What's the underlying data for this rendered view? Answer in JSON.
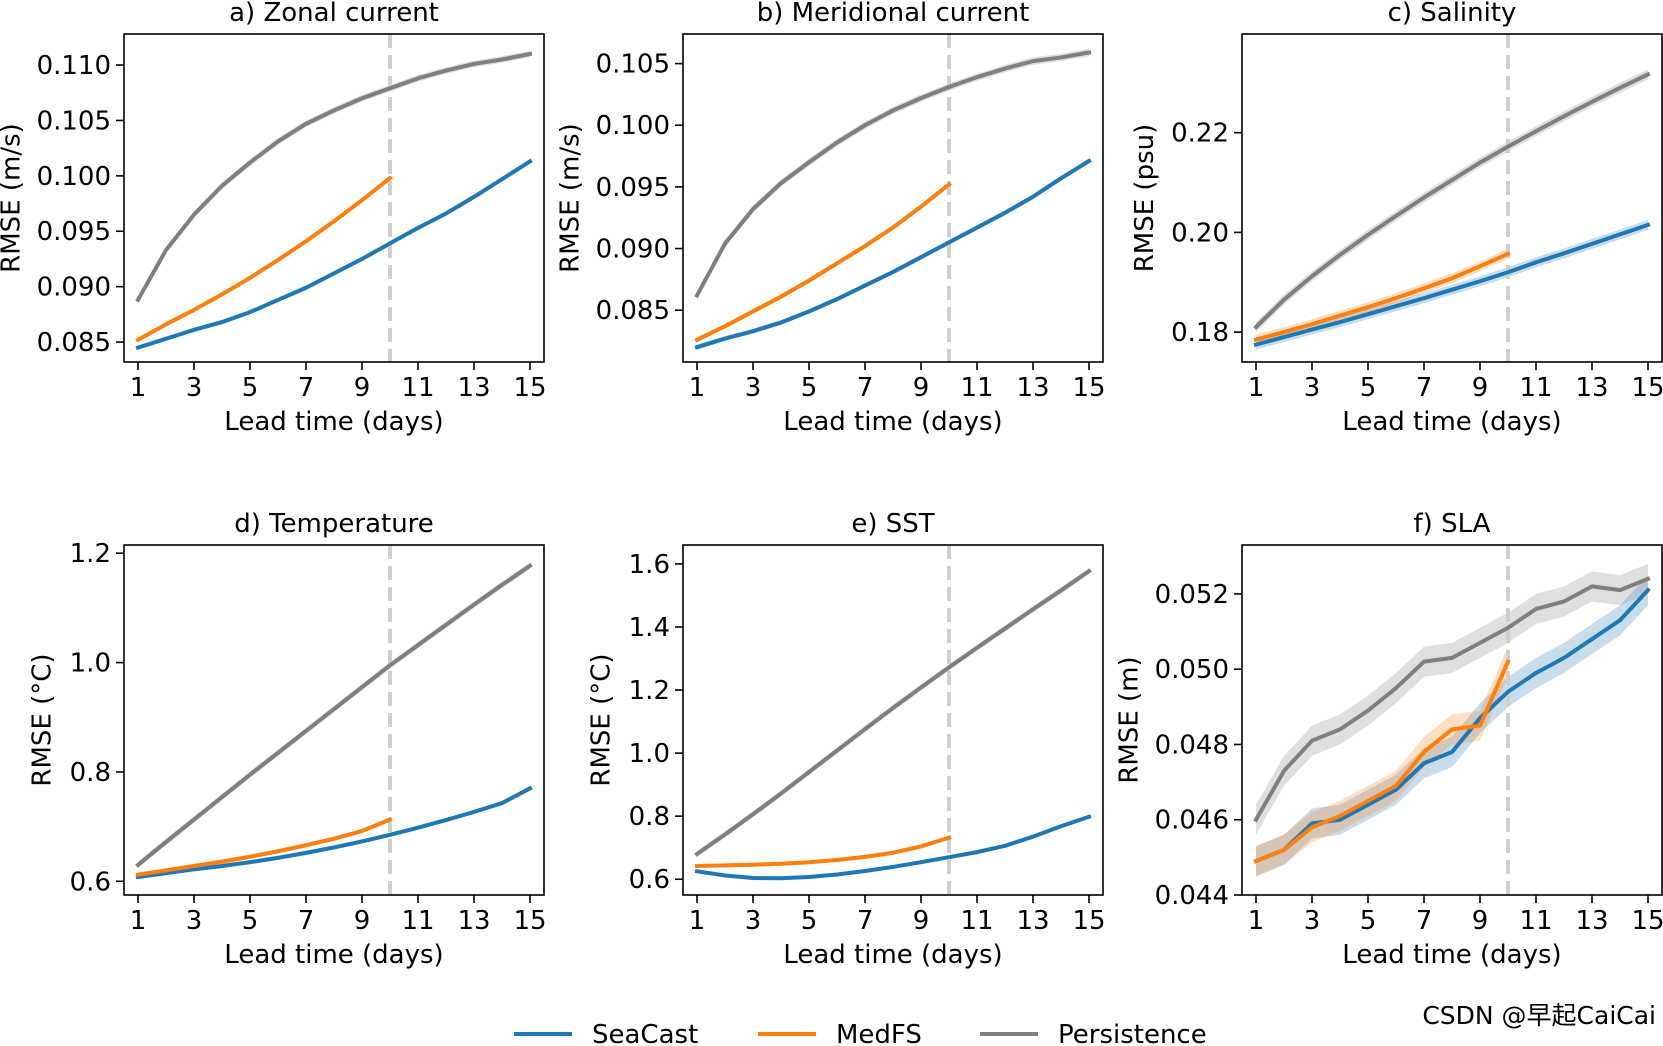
{
  "legend": [
    {
      "name": "SeaCast",
      "color": "#1f77b4"
    },
    {
      "name": "MedFS",
      "color": "#ff7f0e"
    },
    {
      "name": "Persistence",
      "color": "#7f7f7f"
    }
  ],
  "watermark": "CSDN @早起CaiCai",
  "chart_data": [
    {
      "type": "line",
      "title": "a) Zonal current",
      "xlabel": "Lead time (days)",
      "ylabel": "RMSE (m/s)",
      "xlim": [
        0.5,
        15.5
      ],
      "ylim": [
        0.0832,
        0.1128
      ],
      "xticks": [
        "1",
        "3",
        "5",
        "7",
        "9",
        "11",
        "13",
        "15"
      ],
      "yticks": [
        "0.085",
        "0.090",
        "0.095",
        "0.100",
        "0.105",
        "0.110"
      ],
      "marker_x": 10,
      "series": [
        {
          "name": "SeaCast",
          "x": [
            1,
            2,
            3,
            4,
            5,
            6,
            7,
            8,
            9,
            10,
            11,
            12,
            13,
            14,
            15
          ],
          "values": [
            0.0845,
            0.0853,
            0.0861,
            0.0868,
            0.0877,
            0.0888,
            0.0899,
            0.0912,
            0.0925,
            0.0939,
            0.0953,
            0.0966,
            0.0981,
            0.0997,
            0.1013
          ],
          "band": 0.0002
        },
        {
          "name": "MedFS",
          "x": [
            1,
            2,
            3,
            4,
            5,
            6,
            7,
            8,
            9,
            10
          ],
          "values": [
            0.0852,
            0.0866,
            0.0879,
            0.0893,
            0.0908,
            0.0924,
            0.0941,
            0.0959,
            0.0978,
            0.0998
          ],
          "band": 0.0002
        },
        {
          "name": "Persistence",
          "x": [
            1,
            2,
            3,
            4,
            5,
            6,
            7,
            8,
            9,
            10,
            11,
            12,
            13,
            14,
            15
          ],
          "values": [
            0.0888,
            0.0933,
            0.0965,
            0.0991,
            0.1012,
            0.1031,
            0.1047,
            0.1059,
            0.107,
            0.1079,
            0.1088,
            0.1095,
            0.1101,
            0.1105,
            0.111
          ],
          "band": 0.0003
        }
      ]
    },
    {
      "type": "line",
      "title": "b) Meridional current",
      "xlabel": "Lead time (days)",
      "ylabel": "RMSE (m/s)",
      "xlim": [
        0.5,
        15.5
      ],
      "ylim": [
        0.0808,
        0.1074
      ],
      "xticks": [
        "1",
        "3",
        "5",
        "7",
        "9",
        "11",
        "13",
        "15"
      ],
      "yticks": [
        "0.085",
        "0.090",
        "0.095",
        "0.100",
        "0.105"
      ],
      "marker_x": 10,
      "series": [
        {
          "name": "SeaCast",
          "x": [
            1,
            2,
            3,
            4,
            5,
            6,
            7,
            8,
            9,
            10,
            11,
            12,
            13,
            14,
            15
          ],
          "values": [
            0.082,
            0.0827,
            0.0833,
            0.084,
            0.0849,
            0.0859,
            0.087,
            0.0881,
            0.0893,
            0.0905,
            0.0917,
            0.0929,
            0.0942,
            0.0957,
            0.0971
          ],
          "band": 0.0002
        },
        {
          "name": "MedFS",
          "x": [
            1,
            2,
            3,
            4,
            5,
            6,
            7,
            8,
            9,
            10
          ],
          "values": [
            0.0826,
            0.0837,
            0.0849,
            0.0861,
            0.0874,
            0.0888,
            0.0902,
            0.0917,
            0.0934,
            0.0952
          ],
          "band": 0.0002
        },
        {
          "name": "Persistence",
          "x": [
            1,
            2,
            3,
            4,
            5,
            6,
            7,
            8,
            9,
            10,
            11,
            12,
            13,
            14,
            15
          ],
          "values": [
            0.0862,
            0.0904,
            0.0932,
            0.0953,
            0.097,
            0.0986,
            0.1,
            0.1012,
            0.1022,
            0.1031,
            0.1039,
            0.1046,
            0.1052,
            0.1055,
            0.1059
          ],
          "band": 0.0003
        }
      ]
    },
    {
      "type": "line",
      "title": "c) Salinity",
      "xlabel": "Lead time (days)",
      "ylabel": "RMSE (psu)",
      "xlim": [
        0.5,
        15.5
      ],
      "ylim": [
        0.174,
        0.2398
      ],
      "xticks": [
        "1",
        "3",
        "5",
        "7",
        "9",
        "11",
        "13",
        "15"
      ],
      "yticks": [
        "0.18",
        "0.20",
        "0.22"
      ],
      "marker_x": 10,
      "series": [
        {
          "name": "SeaCast",
          "x": [
            1,
            2,
            3,
            4,
            5,
            6,
            7,
            8,
            9,
            10,
            11,
            12,
            13,
            14,
            15
          ],
          "values": [
            0.1775,
            0.179,
            0.1805,
            0.182,
            0.1836,
            0.1852,
            0.1868,
            0.1885,
            0.1902,
            0.192,
            0.194,
            0.1958,
            0.1977,
            0.1996,
            0.2015
          ],
          "band": 0.001
        },
        {
          "name": "MedFS",
          "x": [
            1,
            2,
            3,
            4,
            5,
            6,
            7,
            8,
            9,
            10
          ],
          "values": [
            0.1785,
            0.18,
            0.1816,
            0.1833,
            0.185,
            0.1868,
            0.1888,
            0.1908,
            0.1932,
            0.1957
          ],
          "band": 0.001
        },
        {
          "name": "Persistence",
          "x": [
            1,
            2,
            3,
            4,
            5,
            6,
            7,
            8,
            9,
            10,
            11,
            12,
            13,
            14,
            15
          ],
          "values": [
            0.181,
            0.1865,
            0.1912,
            0.1955,
            0.1995,
            0.2033,
            0.207,
            0.2105,
            0.214,
            0.2172,
            0.2203,
            0.2233,
            0.2262,
            0.229,
            0.2317
          ],
          "band": 0.001
        }
      ]
    },
    {
      "type": "line",
      "title": "d) Temperature",
      "xlabel": "Lead time (days)",
      "ylabel": "RMSE (°C)",
      "xlim": [
        0.5,
        15.5
      ],
      "ylim": [
        0.575,
        1.215
      ],
      "xticks": [
        "1",
        "3",
        "5",
        "7",
        "9",
        "11",
        "13",
        "15"
      ],
      "yticks": [
        "0.6",
        "0.8",
        "1.0",
        "1.2"
      ],
      "marker_x": 10,
      "series": [
        {
          "name": "SeaCast",
          "x": [
            1,
            2,
            3,
            4,
            5,
            6,
            7,
            8,
            9,
            10,
            11,
            12,
            13,
            14,
            15
          ],
          "values": [
            0.608,
            0.615,
            0.622,
            0.628,
            0.635,
            0.643,
            0.652,
            0.662,
            0.673,
            0.685,
            0.698,
            0.712,
            0.727,
            0.743,
            0.77
          ],
          "band": 0.004
        },
        {
          "name": "MedFS",
          "x": [
            1,
            2,
            3,
            4,
            5,
            6,
            7,
            8,
            9,
            10
          ],
          "values": [
            0.612,
            0.62,
            0.628,
            0.636,
            0.645,
            0.655,
            0.666,
            0.678,
            0.692,
            0.713
          ],
          "band": 0.004
        },
        {
          "name": "Persistence",
          "x": [
            1,
            2,
            3,
            4,
            5,
            6,
            7,
            8,
            9,
            10,
            11,
            12,
            13,
            14,
            15
          ],
          "values": [
            0.63,
            0.672,
            0.713,
            0.754,
            0.795,
            0.835,
            0.875,
            0.915,
            0.955,
            0.995,
            1.032,
            1.069,
            1.106,
            1.142,
            1.177
          ],
          "band": 0.006
        }
      ]
    },
    {
      "type": "line",
      "title": "e) SST",
      "xlabel": "Lead time (days)",
      "ylabel": "RMSE (°C)",
      "xlim": [
        0.5,
        15.5
      ],
      "ylim": [
        0.55,
        1.66
      ],
      "xticks": [
        "1",
        "3",
        "5",
        "7",
        "9",
        "11",
        "13",
        "15"
      ],
      "yticks": [
        "0.6",
        "0.8",
        "1.0",
        "1.2",
        "1.4",
        "1.6"
      ],
      "marker_x": 10,
      "series": [
        {
          "name": "SeaCast",
          "x": [
            1,
            2,
            3,
            4,
            5,
            6,
            7,
            8,
            9,
            10,
            11,
            12,
            13,
            14,
            15
          ],
          "values": [
            0.625,
            0.612,
            0.604,
            0.603,
            0.607,
            0.615,
            0.626,
            0.639,
            0.654,
            0.67,
            0.686,
            0.706,
            0.735,
            0.768,
            0.798
          ],
          "band": 0.006
        },
        {
          "name": "MedFS",
          "x": [
            1,
            2,
            3,
            4,
            5,
            6,
            7,
            8,
            9,
            10
          ],
          "values": [
            0.642,
            0.644,
            0.646,
            0.649,
            0.654,
            0.661,
            0.671,
            0.684,
            0.704,
            0.732
          ],
          "band": 0.006
        },
        {
          "name": "Persistence",
          "x": [
            1,
            2,
            3,
            4,
            5,
            6,
            7,
            8,
            9,
            10,
            11,
            12,
            13,
            14,
            15
          ],
          "values": [
            0.68,
            0.742,
            0.806,
            0.872,
            0.94,
            1.008,
            1.076,
            1.143,
            1.208,
            1.272,
            1.334,
            1.395,
            1.456,
            1.516,
            1.577
          ],
          "band": 0.01
        }
      ]
    },
    {
      "type": "line",
      "title": "f) SLA",
      "xlabel": "Lead time (days)",
      "ylabel": "RMSE (m)",
      "xlim": [
        0.5,
        15.5
      ],
      "ylim": [
        0.044,
        0.0533
      ],
      "xticks": [
        "1",
        "3",
        "5",
        "7",
        "9",
        "11",
        "13",
        "15"
      ],
      "yticks": [
        "0.044",
        "0.046",
        "0.048",
        "0.050",
        "0.052"
      ],
      "marker_x": 10,
      "series": [
        {
          "name": "SeaCast",
          "x": [
            1,
            2,
            3,
            4,
            5,
            6,
            7,
            8,
            9,
            10,
            11,
            12,
            13,
            14,
            15
          ],
          "values": [
            0.0449,
            0.0452,
            0.0459,
            0.046,
            0.0464,
            0.0468,
            0.0475,
            0.0478,
            0.0487,
            0.0494,
            0.0499,
            0.0503,
            0.0508,
            0.0513,
            0.0521
          ],
          "band": 0.0004
        },
        {
          "name": "MedFS",
          "x": [
            1,
            2,
            3,
            4,
            5,
            6,
            7,
            8,
            9,
            10
          ],
          "values": [
            0.0449,
            0.0452,
            0.0458,
            0.0461,
            0.0465,
            0.0469,
            0.0478,
            0.0484,
            0.0485,
            0.0502
          ],
          "band": 0.0004
        },
        {
          "name": "Persistence",
          "x": [
            1,
            2,
            3,
            4,
            5,
            6,
            7,
            8,
            9,
            10,
            11,
            12,
            13,
            14,
            15
          ],
          "values": [
            0.046,
            0.0473,
            0.0481,
            0.0484,
            0.0489,
            0.0495,
            0.0502,
            0.0503,
            0.0507,
            0.0511,
            0.0516,
            0.0518,
            0.0522,
            0.0521,
            0.0524
          ],
          "band": 0.0004
        }
      ]
    }
  ]
}
